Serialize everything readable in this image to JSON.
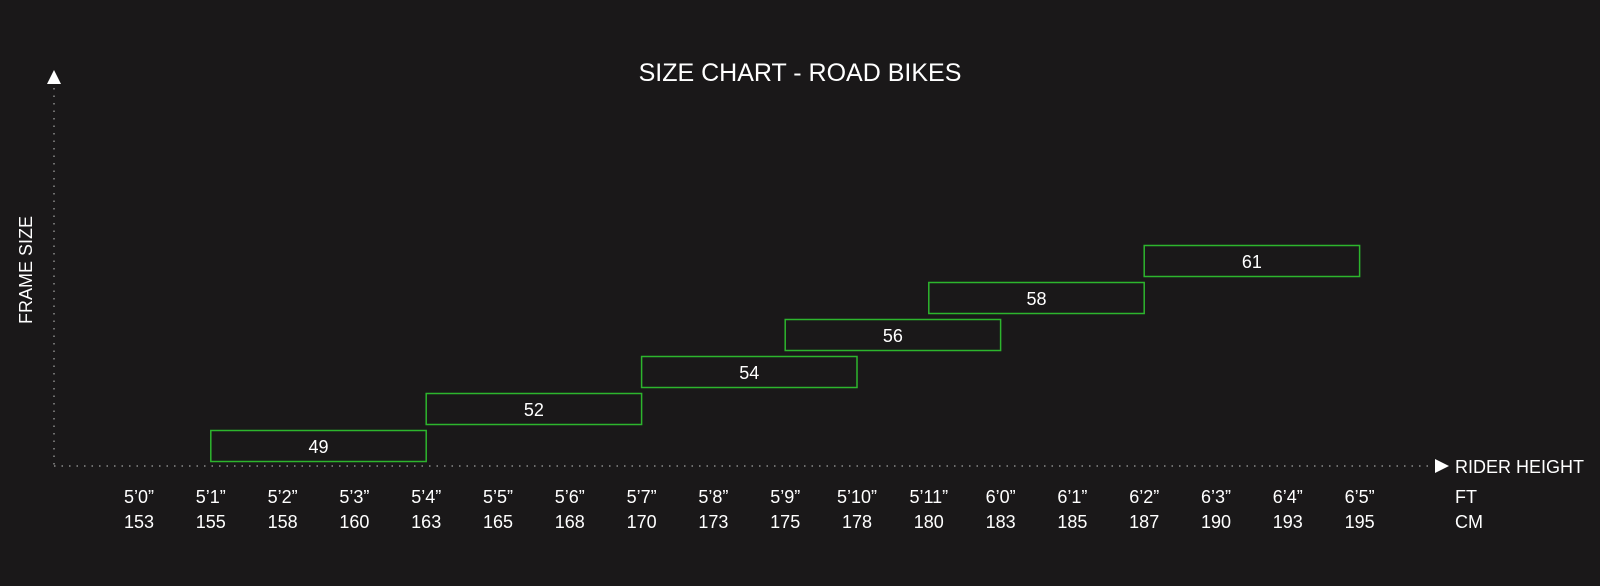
{
  "chart_data": {
    "type": "bar",
    "title": "SIZE CHART - ROAD BIKES",
    "xlabel": "RIDER HEIGHT",
    "ylabel": "FRAME SIZE",
    "x_ticks_ft": [
      "5’0”",
      "5’1”",
      "5’2”",
      "5’3”",
      "5’4”",
      "5’5”",
      "5’6”",
      "5’7”",
      "5’8”",
      "5’9”",
      "5’10”",
      "5’11”",
      "6’0”",
      "6’1”",
      "6’2”",
      "6’3”",
      "6’4”",
      "6’5”"
    ],
    "x_ticks_cm": [
      "153",
      "155",
      "158",
      "160",
      "163",
      "165",
      "168",
      "170",
      "173",
      "175",
      "178",
      "180",
      "183",
      "185",
      "187",
      "190",
      "193",
      "195"
    ],
    "unit_ft": "FT",
    "unit_cm": "CM",
    "sizes": [
      {
        "label": "49",
        "from": "5’1”",
        "to": "5’4”"
      },
      {
        "label": "52",
        "from": "5’4”",
        "to": "5’7”"
      },
      {
        "label": "54",
        "from": "5’7”",
        "to": "5’10”"
      },
      {
        "label": "56",
        "from": "5’9”",
        "to": "6’0”"
      },
      {
        "label": "58",
        "from": "5’11”",
        "to": "6’2”"
      },
      {
        "label": "61",
        "from": "6’2”",
        "to": "6’5”"
      }
    ],
    "bar_color": "#2db52d",
    "axis_color": "#8a8a8a",
    "grid": false
  }
}
